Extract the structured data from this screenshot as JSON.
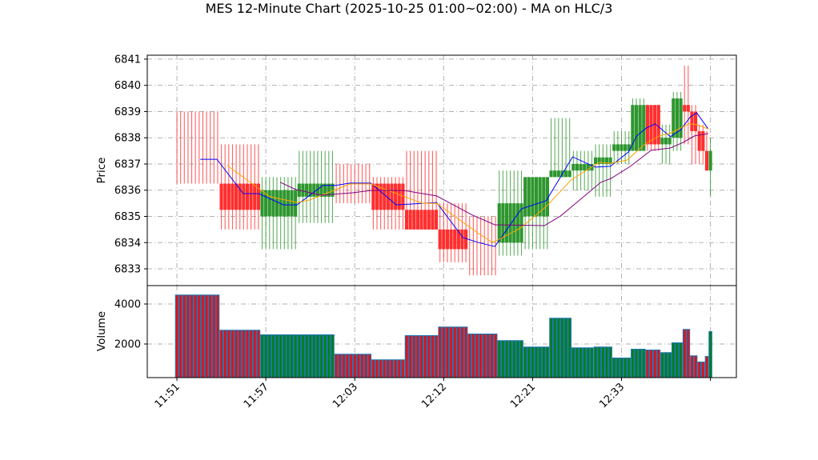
{
  "chart_data": {
    "type": "candlestick",
    "title": "MES 12-Minute Chart (2025-10-25 01:00~02:00) - MA on HLC/3",
    "price_panel": {
      "ylabel": "Price",
      "ylim": [
        6832.36,
        6841.15
      ],
      "yticks": [
        6833,
        6834,
        6835,
        6836,
        6837,
        6838,
        6839,
        6840,
        6841
      ],
      "grid": true
    },
    "volume_panel": {
      "ylabel": "Volume",
      "ylim": [
        320,
        4920
      ],
      "yticks": [
        2000,
        4000
      ],
      "grid": true,
      "bar_color": "#1f77b4"
    },
    "xlim": [
      -8,
      151
    ],
    "xticks": [
      {
        "bar": 0,
        "label": "11:51"
      },
      {
        "bar": 24,
        "label": "11:57"
      },
      {
        "bar": 48,
        "label": "12:03"
      },
      {
        "bar": 72,
        "label": "12:12"
      },
      {
        "bar": 96,
        "label": "12:21"
      },
      {
        "bar": 120,
        "label": "12:33"
      },
      {
        "bar": 144,
        "label": ""
      }
    ],
    "colors": {
      "up": "#2e962e",
      "down": "#ff2e2e",
      "vol_up": "#008000",
      "vol_down": "#ff0000"
    },
    "groups": [
      {
        "bars": 12,
        "open": 6836.25,
        "high": 6839.0,
        "low": 6836.25,
        "close": 6836.25,
        "dir": "down",
        "volume": 4470
      },
      {
        "bars": 11,
        "open": 6836.25,
        "high": 6837.75,
        "low": 6834.5,
        "close": 6835.25,
        "dir": "down",
        "volume": 2710
      },
      {
        "bars": 10,
        "open": 6835.0,
        "high": 6836.5,
        "low": 6833.75,
        "close": 6836.0,
        "dir": "up",
        "volume": 2480
      },
      {
        "bars": 10,
        "open": 6835.75,
        "high": 6837.5,
        "low": 6834.75,
        "close": 6836.25,
        "dir": "up",
        "volume": 2480
      },
      {
        "bars": 10,
        "open": 6836.25,
        "high": 6837.0,
        "low": 6835.5,
        "close": 6836.25,
        "dir": "down",
        "volume": 1510
      },
      {
        "bars": 9,
        "open": 6836.25,
        "high": 6836.5,
        "low": 6834.5,
        "close": 6835.25,
        "dir": "down",
        "volume": 1230
      },
      {
        "bars": 9,
        "open": 6835.25,
        "high": 6837.5,
        "low": 6834.5,
        "close": 6834.5,
        "dir": "down",
        "volume": 2440
      },
      {
        "bars": 8,
        "open": 6834.5,
        "high": 6835.5,
        "low": 6833.25,
        "close": 6833.75,
        "dir": "down",
        "volume": 2870
      },
      {
        "bars": 8,
        "open": 6833.75,
        "high": 6835.0,
        "low": 6832.75,
        "close": 6833.75,
        "dir": "down",
        "volume": 2520
      },
      {
        "bars": 7,
        "open": 6834.0,
        "high": 6836.75,
        "low": 6833.5,
        "close": 6835.5,
        "dir": "up",
        "volume": 2190
      },
      {
        "bars": 7,
        "open": 6835.0,
        "high": 6836.5,
        "low": 6833.75,
        "close": 6836.5,
        "dir": "up",
        "volume": 1870
      },
      {
        "bars": 6,
        "open": 6836.5,
        "high": 6838.75,
        "low": 6836.5,
        "close": 6836.75,
        "dir": "up",
        "volume": 3310
      },
      {
        "bars": 6,
        "open": 6836.75,
        "high": 6837.5,
        "low": 6836.0,
        "close": 6837.0,
        "dir": "up",
        "volume": 1830
      },
      {
        "bars": 5,
        "open": 6837.0,
        "high": 6837.75,
        "low": 6835.75,
        "close": 6837.25,
        "dir": "up",
        "volume": 1870
      },
      {
        "bars": 5,
        "open": 6837.5,
        "high": 6838.25,
        "low": 6837.0,
        "close": 6837.75,
        "dir": "up",
        "volume": 1320
      },
      {
        "bars": 4,
        "open": 6837.5,
        "high": 6839.5,
        "low": 6837.5,
        "close": 6839.25,
        "dir": "up",
        "volume": 1760
      },
      {
        "bars": 4,
        "open": 6839.25,
        "high": 6839.25,
        "low": 6837.5,
        "close": 6837.75,
        "dir": "down",
        "volume": 1720
      },
      {
        "bars": 3,
        "open": 6837.75,
        "high": 6838.5,
        "low": 6837.0,
        "close": 6838.0,
        "dir": "up",
        "volume": 1590
      },
      {
        "bars": 3,
        "open": 6838.0,
        "high": 6839.75,
        "low": 6837.5,
        "close": 6839.5,
        "dir": "up",
        "volume": 2080
      },
      {
        "bars": 2,
        "open": 6839.25,
        "high": 6840.75,
        "low": 6837.75,
        "close": 6839.0,
        "dir": "down",
        "volume": 2750
      },
      {
        "bars": 2,
        "open": 6839.0,
        "high": 6839.25,
        "low": 6837.0,
        "close": 6838.25,
        "dir": "down",
        "volume": 1430
      },
      {
        "bars": 2,
        "open": 6838.25,
        "high": 6838.5,
        "low": 6837.0,
        "close": 6837.5,
        "dir": "down",
        "volume": 1120
      },
      {
        "bars": 1,
        "open": 6837.5,
        "high": 6838.25,
        "low": 6836.75,
        "close": 6836.75,
        "dir": "down",
        "volume": 1400
      },
      {
        "bars": 1,
        "open": 6836.75,
        "high": 6838.0,
        "low": 6835.75,
        "close": 6837.5,
        "dir": "up",
        "volume": 2640
      }
    ],
    "ma_series": [
      {
        "color": "#0000ff",
        "points": [
          [
            6.3,
            6837.18
          ],
          [
            10.8,
            6837.18
          ],
          [
            17.9,
            6835.87
          ],
          [
            22.1,
            6835.87
          ],
          [
            28.8,
            6835.44
          ],
          [
            32.4,
            6835.44
          ],
          [
            39.4,
            6836.18
          ],
          [
            42.8,
            6836.18
          ],
          [
            46.7,
            6836.27
          ],
          [
            52.3,
            6836.27
          ],
          [
            59.2,
            6835.44
          ],
          [
            70.1,
            6835.53
          ],
          [
            77.2,
            6834.19
          ],
          [
            81.5,
            6834.0
          ],
          [
            85.8,
            6833.85
          ],
          [
            93.0,
            6835.29
          ],
          [
            99.7,
            6835.6
          ],
          [
            106.8,
            6837.27
          ],
          [
            112.9,
            6836.88
          ],
          [
            117.0,
            6836.91
          ],
          [
            121.9,
            6837.46
          ],
          [
            124.1,
            6838.07
          ],
          [
            126.7,
            6838.37
          ],
          [
            129.1,
            6838.53
          ],
          [
            133.2,
            6838.04
          ],
          [
            136.0,
            6838.31
          ],
          [
            138.6,
            6838.8
          ],
          [
            140.3,
            6838.95
          ],
          [
            143.4,
            6838.34
          ]
        ]
      },
      {
        "color": "#ffa500",
        "points": [
          [
            13.6,
            6836.94
          ],
          [
            25.1,
            6835.75
          ],
          [
            32.6,
            6835.53
          ],
          [
            35.9,
            6835.63
          ],
          [
            46.7,
            6836.24
          ],
          [
            52.3,
            6836.24
          ],
          [
            66.2,
            6835.5
          ],
          [
            70.1,
            6835.5
          ],
          [
            81.5,
            6834.34
          ],
          [
            84.8,
            6834.04
          ],
          [
            85.8,
            6834.04
          ],
          [
            92.8,
            6834.56
          ],
          [
            99.7,
            6835.38
          ],
          [
            106.4,
            6836.39
          ],
          [
            113.9,
            6837.06
          ],
          [
            117.2,
            6837.03
          ],
          [
            121.5,
            6837.15
          ],
          [
            126.3,
            6837.76
          ],
          [
            130.2,
            6838.07
          ],
          [
            133.4,
            6838.19
          ],
          [
            138.2,
            6838.53
          ],
          [
            140.3,
            6838.5
          ],
          [
            143.4,
            6838.34
          ]
        ]
      },
      {
        "color": "#800080",
        "points": [
          [
            27.9,
            6836.3
          ],
          [
            32.2,
            6836.02
          ],
          [
            39.1,
            6835.81
          ],
          [
            47.4,
            6835.9
          ],
          [
            52.3,
            6835.99
          ],
          [
            61.4,
            6835.99
          ],
          [
            70.1,
            6835.78
          ],
          [
            79.8,
            6835.05
          ],
          [
            85.8,
            6834.68
          ],
          [
            99.2,
            6834.65
          ],
          [
            103.6,
            6835.02
          ],
          [
            114.4,
            6836.3
          ],
          [
            117.2,
            6836.45
          ],
          [
            122.4,
            6836.91
          ],
          [
            128.0,
            6837.52
          ],
          [
            133.2,
            6837.61
          ],
          [
            136.6,
            6837.82
          ],
          [
            139.7,
            6838.07
          ],
          [
            143.4,
            6838.16
          ]
        ]
      }
    ]
  }
}
